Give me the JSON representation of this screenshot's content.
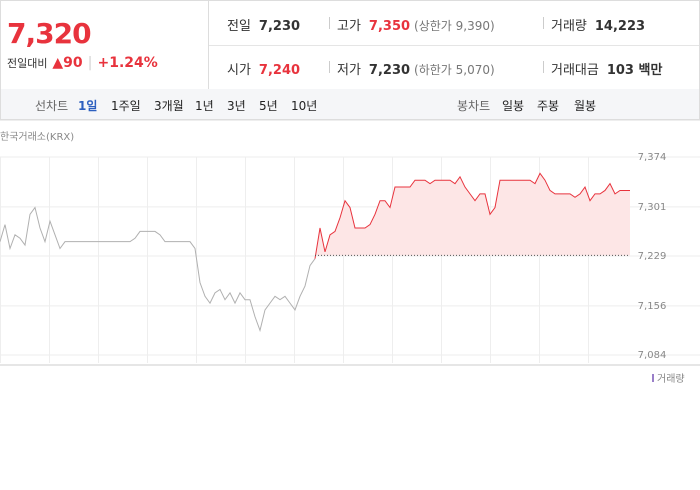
{
  "quote": {
    "price": "7,320",
    "change_label": "전일대비",
    "change_arrow": "▲",
    "change": "90",
    "change_pct": "+1.24%"
  },
  "stats": [
    {
      "label": "전일",
      "value": "7,230"
    },
    {
      "label": "고가",
      "value": "7,350",
      "note": "(상한가 9,390)"
    },
    {
      "label": "거래량",
      "value": "14,223"
    },
    {
      "label": "시가",
      "value": "7,240"
    },
    {
      "label": "저가",
      "value": "7,230",
      "note": "(하한가 5,070)"
    },
    {
      "label": "거래대금",
      "value": "103 백만"
    }
  ],
  "tabs": {
    "line_label": "선차트",
    "line_periods": [
      "1일",
      "1주일",
      "3개월",
      "1년",
      "3년",
      "5년",
      "10년"
    ],
    "candle_label": "봉차트",
    "candle_periods": [
      "일봉",
      "주봉",
      "월봉"
    ]
  },
  "chart_data": {
    "type": "line",
    "source": "한국거래소(KRX)",
    "volume_label": "거래량",
    "xlim": [
      0,
      126
    ],
    "ylim": [
      7084,
      7374
    ],
    "yticks": [
      {
        "value": 7374,
        "label": "7,374"
      },
      {
        "value": 7301,
        "label": "7,301"
      },
      {
        "value": 7229,
        "label": "7,229"
      },
      {
        "value": 7156,
        "label": "7,156"
      },
      {
        "value": 7084,
        "label": "7,084"
      }
    ],
    "reference": 7230,
    "series": [
      {
        "color": "#b0b0b0",
        "x": [
          0,
          1,
          2,
          3,
          4,
          5,
          6,
          7,
          8,
          9,
          10,
          11,
          12,
          13,
          14,
          15,
          16,
          17,
          18,
          19,
          20,
          21,
          22,
          23,
          24,
          25,
          26,
          27,
          28,
          29,
          30,
          31,
          32,
          33,
          34,
          35,
          36,
          37,
          38,
          39,
          40,
          41,
          42,
          43,
          44,
          45,
          46,
          47,
          48,
          49,
          50,
          51,
          52,
          53,
          54,
          55,
          56,
          57,
          58,
          59,
          60,
          61,
          62,
          63
        ],
        "values": [
          7250,
          7275,
          7240,
          7260,
          7255,
          7245,
          7290,
          7300,
          7270,
          7250,
          7280,
          7260,
          7240,
          7250,
          7250,
          7250,
          7250,
          7250,
          7250,
          7250,
          7250,
          7250,
          7250,
          7250,
          7250,
          7250,
          7250,
          7255,
          7265,
          7265,
          7265,
          7265,
          7260,
          7250,
          7250,
          7250,
          7250,
          7250,
          7250,
          7240,
          7190,
          7170,
          7160,
          7175,
          7180,
          7165,
          7175,
          7160,
          7175,
          7165,
          7165,
          7140,
          7120,
          7150,
          7160,
          7170,
          7165,
          7170,
          7160,
          7150,
          7170,
          7185,
          7215,
          7225
        ]
      },
      {
        "color": "#e8333d",
        "fill": "#fde6e6",
        "x": [
          63,
          64,
          65,
          66,
          67,
          68,
          69,
          70,
          71,
          72,
          73,
          74,
          75,
          76,
          77,
          78,
          79,
          80,
          81,
          82,
          83,
          84,
          85,
          86,
          87,
          88,
          89,
          90,
          91,
          92,
          93,
          94,
          95,
          96,
          97,
          98,
          99,
          100,
          101,
          102,
          103,
          104,
          105,
          106,
          107,
          108,
          109,
          110,
          111,
          112,
          113,
          114,
          115,
          116,
          117,
          118,
          119,
          120,
          121,
          122,
          123,
          124,
          125,
          126
        ],
        "values": [
          7225,
          7270,
          7235,
          7260,
          7265,
          7285,
          7310,
          7300,
          7270,
          7270,
          7270,
          7275,
          7290,
          7310,
          7310,
          7300,
          7330,
          7330,
          7330,
          7330,
          7340,
          7340,
          7340,
          7335,
          7340,
          7340,
          7340,
          7340,
          7335,
          7345,
          7330,
          7320,
          7310,
          7320,
          7320,
          7290,
          7300,
          7340,
          7340,
          7340,
          7340,
          7340,
          7340,
          7340,
          7335,
          7350,
          7340,
          7325,
          7320,
          7320,
          7320,
          7320,
          7315,
          7320,
          7330,
          7310,
          7320,
          7320,
          7325,
          7335,
          7320,
          7325,
          7325,
          7325
        ]
      }
    ]
  }
}
